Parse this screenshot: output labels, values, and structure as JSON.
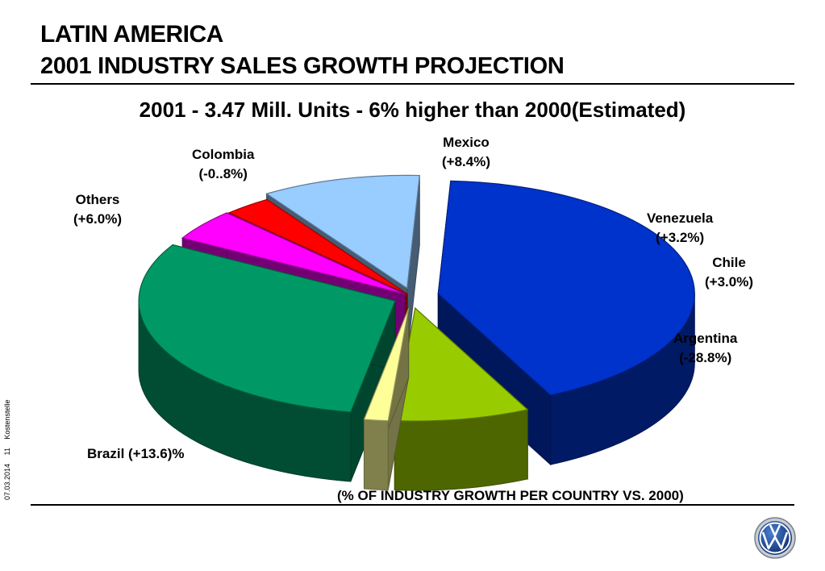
{
  "slide": {
    "title_line1": "LATIN AMERICA",
    "title_line2": "2001 INDUSTRY SALES GROWTH PROJECTION",
    "subtitle": "2001 - 3.47 Mill. Units - 6% higher than 2000(Estimated)",
    "footnote": "(% OF INDUSTRY GROWTH PER COUNTRY VS. 2000)",
    "side_date": "07.03.2014",
    "side_page": "11",
    "side_dept": "Kostenstelle"
  },
  "chart_data": {
    "type": "pie",
    "title": "",
    "categories": [
      "Mexico",
      "Venezuela",
      "Chile",
      "Argentina",
      "Brazil",
      "Others",
      "Colombia"
    ],
    "values": [
      30.5,
      4.5,
      3,
      10,
      42,
      8.5,
      1.5
    ],
    "labels": [
      {
        "name": "Mexico",
        "growth": "(+8.4%)"
      },
      {
        "name": "Venezuela",
        "growth": "(+3.2%)"
      },
      {
        "name": "Chile",
        "growth": "(+3.0%)"
      },
      {
        "name": "Argentina",
        "growth": "(-28.8%)"
      },
      {
        "name": "Brazil (+13.6)%",
        "growth": ""
      },
      {
        "name": "Others",
        "growth": "(+6.0%)"
      },
      {
        "name": "Colombia",
        "growth": "(-0..8%)"
      }
    ],
    "colors": [
      "#009966",
      "#ff00ff",
      "#ff0000",
      "#99ccff",
      "#0033cc",
      "#99cc00",
      "#ffff99"
    ],
    "style": "3d-exploded-pie"
  }
}
